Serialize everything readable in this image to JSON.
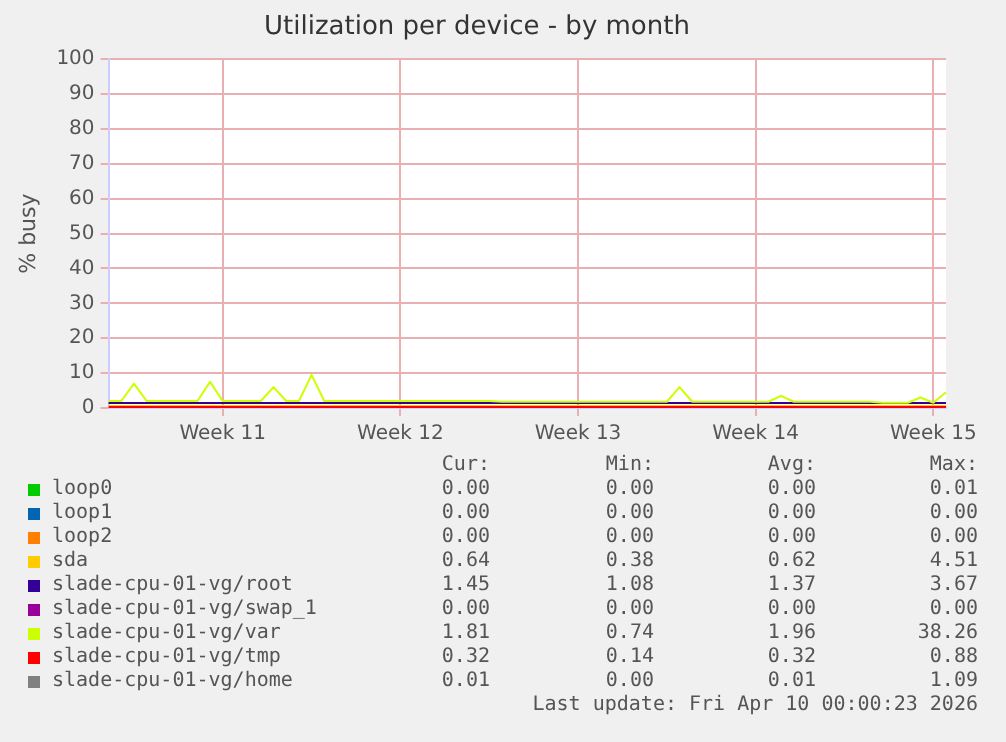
{
  "chart_data": {
    "type": "line",
    "title": "Utilization per device - by month",
    "ylabel": "% busy",
    "categories": [
      null,
      null,
      null,
      null,
      null,
      null,
      null,
      null,
      null,
      "Week 11",
      null,
      null,
      null,
      null,
      null,
      null,
      null,
      null,
      null,
      null,
      null,
      null,
      null,
      "Week 12",
      null,
      null,
      null,
      null,
      null,
      null,
      null,
      null,
      null,
      null,
      null,
      null,
      null,
      "Week 13",
      null,
      null,
      null,
      null,
      null,
      null,
      null,
      null,
      null,
      null,
      null,
      null,
      null,
      "Week 14",
      null,
      null,
      null,
      null,
      null,
      null,
      null,
      null,
      null,
      null,
      null,
      null,
      null,
      "Week 15",
      null
    ],
    "ylim": [
      0,
      100
    ],
    "yticks": [
      0,
      10,
      20,
      30,
      40,
      50,
      60,
      70,
      80,
      90,
      100
    ],
    "grid": true,
    "legend": "bottom",
    "marker": "none",
    "line_style": "solid",
    "series": [
      {
        "name": "loop0",
        "color": "#00cc00",
        "values": [
          null,
          null,
          null,
          null,
          null,
          null,
          null,
          null,
          null,
          null,
          null,
          null,
          null,
          null,
          null,
          null,
          null,
          null,
          null,
          null,
          null,
          null,
          null,
          null,
          null,
          null,
          null,
          null,
          null,
          null,
          null,
          null,
          null,
          null,
          null,
          null,
          null,
          null,
          null,
          null,
          null,
          null,
          null,
          null,
          null,
          null,
          null,
          null,
          null,
          null,
          null,
          null,
          null,
          null,
          null,
          null,
          null,
          null,
          null,
          null,
          null,
          null,
          null,
          null,
          null,
          null,
          null
        ]
      },
      {
        "name": "loop1",
        "color": "#0066b3",
        "values": [
          null,
          null,
          null,
          null,
          null,
          null,
          null,
          null,
          null,
          null,
          null,
          null,
          null,
          null,
          null,
          null,
          null,
          null,
          null,
          null,
          null,
          null,
          null,
          null,
          null,
          null,
          null,
          null,
          null,
          null,
          null,
          null,
          null,
          null,
          null,
          null,
          null,
          null,
          null,
          null,
          null,
          null,
          null,
          null,
          null,
          null,
          null,
          null,
          null,
          null,
          null,
          null,
          null,
          null,
          null,
          null,
          null,
          null,
          null,
          null,
          null,
          null,
          null,
          null,
          null,
          null,
          null
        ]
      },
      {
        "name": "loop2",
        "color": "#ff8000",
        "values": [
          null,
          null,
          null,
          null,
          null,
          null,
          null,
          null,
          null,
          null,
          null,
          null,
          null,
          null,
          null,
          null,
          null,
          null,
          null,
          null,
          null,
          null,
          null,
          null,
          null,
          null,
          null,
          null,
          null,
          null,
          null,
          null,
          null,
          null,
          null,
          null,
          null,
          null,
          null,
          null,
          null,
          null,
          null,
          null,
          null,
          null,
          null,
          null,
          null,
          null,
          null,
          null,
          null,
          null,
          null,
          null,
          null,
          null,
          null,
          null,
          null,
          null,
          null,
          null,
          null,
          null,
          null
        ]
      },
      {
        "name": "sda",
        "color": "#ffcc00",
        "values": [
          0.6,
          0.6,
          0.6,
          0.6,
          0.6,
          0.6,
          0.6,
          0.6,
          0.6,
          0.6,
          0.6,
          0.6,
          0.6,
          0.6,
          0.6,
          0.6,
          0.6,
          0.6,
          0.6,
          0.6,
          0.6,
          0.6,
          0.6,
          0.6,
          0.6,
          0.6,
          0.6,
          0.6,
          0.6,
          0.6,
          0.6,
          0.6,
          0.6,
          0.6,
          0.6,
          0.6,
          0.6,
          0.6,
          0.6,
          0.6,
          0.6,
          0.6,
          0.6,
          0.6,
          0.6,
          0.6,
          0.6,
          0.6,
          0.6,
          0.6,
          0.6,
          0.6,
          0.6,
          0.6,
          0.6,
          0.6,
          0.6,
          0.6,
          0.6,
          0.6,
          0.6,
          0.6,
          0.6,
          0.6,
          0.6,
          0.6,
          0.6
        ]
      },
      {
        "name": "slade-cpu-01-vg/root",
        "color": "#330099",
        "values": [
          1.4,
          1.4,
          1.4,
          1.4,
          1.4,
          1.4,
          1.4,
          1.4,
          1.4,
          1.4,
          1.4,
          1.4,
          1.4,
          1.4,
          1.4,
          1.4,
          1.4,
          1.4,
          1.4,
          1.4,
          1.4,
          1.4,
          1.4,
          1.4,
          1.4,
          1.4,
          1.4,
          1.4,
          1.4,
          1.4,
          1.4,
          1.4,
          1.4,
          1.4,
          1.4,
          1.4,
          1.4,
          1.4,
          1.4,
          1.4,
          1.4,
          1.4,
          1.4,
          1.4,
          1.4,
          1.4,
          1.4,
          1.4,
          1.4,
          1.4,
          1.4,
          1.4,
          1.4,
          1.4,
          1.4,
          1.4,
          1.4,
          1.4,
          1.4,
          1.4,
          1.4,
          1.4,
          1.4,
          1.4,
          1.4,
          1.4,
          1.4
        ]
      },
      {
        "name": "slade-cpu-01-vg/swap_1",
        "color": "#990099",
        "values": [
          null,
          null,
          null,
          null,
          null,
          null,
          null,
          null,
          null,
          null,
          null,
          null,
          null,
          null,
          null,
          null,
          null,
          null,
          null,
          null,
          null,
          null,
          null,
          null,
          null,
          null,
          null,
          null,
          null,
          null,
          null,
          null,
          null,
          null,
          null,
          null,
          null,
          null,
          null,
          null,
          null,
          null,
          null,
          null,
          null,
          null,
          null,
          null,
          null,
          null,
          null,
          null,
          null,
          null,
          null,
          null,
          null,
          null,
          null,
          null,
          null,
          null,
          null,
          null,
          null,
          null,
          null
        ]
      },
      {
        "name": "slade-cpu-01-vg/var",
        "color": "#ccff00",
        "values": [
          2,
          2,
          7,
          2,
          2,
          2,
          2,
          2,
          7.5,
          2,
          2,
          2,
          2,
          6,
          2,
          2,
          9.5,
          2,
          2,
          2,
          2,
          2,
          2,
          2,
          2,
          2,
          2,
          2,
          2,
          2,
          2,
          1.8,
          1.8,
          1.8,
          1.8,
          1.8,
          1.8,
          1.8,
          1.8,
          1.8,
          1.8,
          1.8,
          1.8,
          1.8,
          1.8,
          6,
          1.8,
          1.8,
          1.8,
          1.8,
          1.8,
          1.8,
          1.8,
          3.5,
          1.8,
          1.8,
          1.8,
          1.8,
          1.8,
          1.8,
          1.8,
          1.5,
          1.5,
          1.5,
          3,
          1.5,
          4.5
        ]
      },
      {
        "name": "slade-cpu-01-vg/tmp",
        "color": "#ff0000",
        "values": [
          0.3,
          0.3,
          0.3,
          0.3,
          0.3,
          0.3,
          0.3,
          0.3,
          0.3,
          0.3,
          0.3,
          0.3,
          0.3,
          0.3,
          0.3,
          0.3,
          0.3,
          0.3,
          0.3,
          0.3,
          0.3,
          0.3,
          0.3,
          0.3,
          0.3,
          0.3,
          0.3,
          0.3,
          0.3,
          0.3,
          0.3,
          0.3,
          0.3,
          0.3,
          0.3,
          0.3,
          0.3,
          0.3,
          0.3,
          0.3,
          0.3,
          0.3,
          0.3,
          0.3,
          0.3,
          0.3,
          0.3,
          0.3,
          0.3,
          0.3,
          0.3,
          0.3,
          0.3,
          0.3,
          0.3,
          0.3,
          0.3,
          0.3,
          0.3,
          0.3,
          0.3,
          0.3,
          0.3,
          0.3,
          0.3,
          0.3,
          0.3
        ]
      },
      {
        "name": "slade-cpu-01-vg/home",
        "color": "#808080",
        "values": [
          null,
          null,
          null,
          null,
          null,
          null,
          null,
          null,
          null,
          null,
          null,
          null,
          null,
          null,
          null,
          null,
          null,
          null,
          null,
          null,
          null,
          null,
          null,
          null,
          null,
          null,
          null,
          null,
          null,
          null,
          null,
          null,
          null,
          null,
          null,
          null,
          null,
          null,
          null,
          null,
          null,
          null,
          null,
          null,
          null,
          null,
          null,
          null,
          null,
          null,
          null,
          null,
          null,
          null,
          null,
          null,
          null,
          null,
          null,
          null,
          null,
          null,
          null,
          null,
          null,
          null,
          null
        ]
      }
    ],
    "annotations": [
      "Cur:",
      "Min:",
      "Avg:",
      "Max:",
      "0.00",
      "0.00",
      "0.00",
      "0.01",
      "0.00",
      "0.00",
      "0.00",
      "0.00",
      "0.00",
      "0.00",
      "0.00",
      "0.00",
      "0.64",
      "0.38",
      "0.62",
      "4.51",
      "1.45",
      "1.08",
      "1.37",
      "3.67",
      "0.00",
      "0.00",
      "0.00",
      "0.00",
      "1.81",
      "0.74",
      "1.96",
      "38.26",
      "0.32",
      "0.14",
      "0.32",
      "0.88",
      "0.01",
      "0.00",
      "0.01",
      "1.09",
      "Last update: Fri Apr 10 00:00:23 2026"
    ]
  }
}
